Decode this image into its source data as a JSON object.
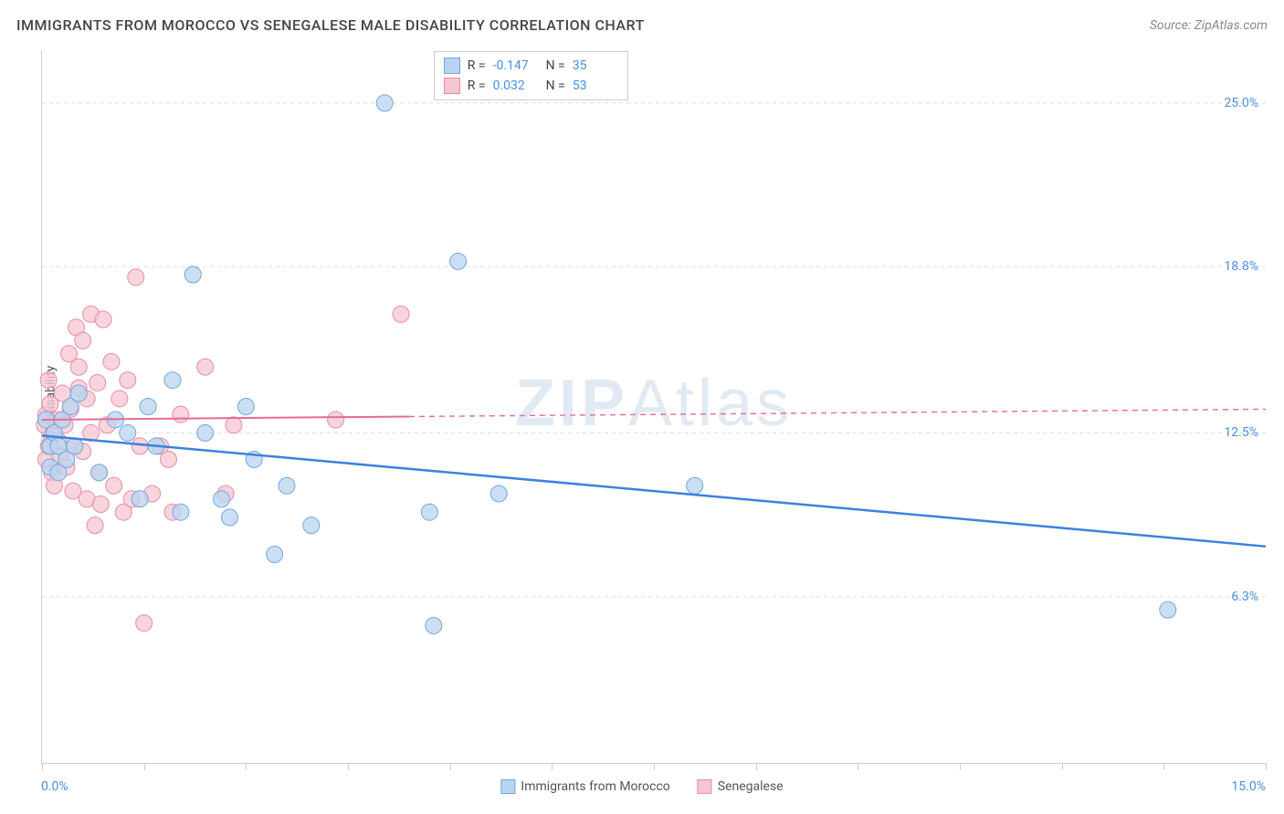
{
  "title": "IMMIGRANTS FROM MOROCCO VS SENEGALESE MALE DISABILITY CORRELATION CHART",
  "source": "Source: ZipAtlas.com",
  "watermark": {
    "part1": "ZIP",
    "part2": "Atlas"
  },
  "chart": {
    "type": "scatter",
    "ylabel": "Male Disability",
    "xlim": [
      0,
      15
    ],
    "ylim": [
      0,
      27
    ],
    "x_min_label": "0.0%",
    "x_max_label": "15.0%",
    "x_ticks": [
      0,
      1.25,
      2.5,
      3.75,
      5,
      6.25,
      7.5,
      8.75,
      10,
      11.25,
      12.5,
      13.75,
      15
    ],
    "y_gridlines": [
      {
        "value": 6.3,
        "label": "6.3%"
      },
      {
        "value": 12.5,
        "label": "12.5%"
      },
      {
        "value": 18.8,
        "label": "18.8%"
      },
      {
        "value": 25.0,
        "label": "25.0%"
      }
    ],
    "series": [
      {
        "name": "Immigrants from Morocco",
        "color_fill": "#b9d4f0",
        "color_stroke": "#6fa8dc",
        "trend": {
          "x1": 0,
          "y1": 12.4,
          "x2": 15,
          "y2": 8.2,
          "solid_until_x": 15,
          "color": "#3b82e0",
          "width": 2.5
        },
        "stats": {
          "R": "-0.147",
          "N": "35"
        },
        "points": [
          [
            0.05,
            13.0
          ],
          [
            0.1,
            12.0
          ],
          [
            0.1,
            11.2
          ],
          [
            0.15,
            12.5
          ],
          [
            0.2,
            12.0
          ],
          [
            0.2,
            11.0
          ],
          [
            0.25,
            13.0
          ],
          [
            0.3,
            11.5
          ],
          [
            0.35,
            13.5
          ],
          [
            0.4,
            12.0
          ],
          [
            0.45,
            14.0
          ],
          [
            0.7,
            11.0
          ],
          [
            0.9,
            13.0
          ],
          [
            1.05,
            12.5
          ],
          [
            1.2,
            10.0
          ],
          [
            1.3,
            13.5
          ],
          [
            1.4,
            12.0
          ],
          [
            1.6,
            14.5
          ],
          [
            1.7,
            9.5
          ],
          [
            1.85,
            18.5
          ],
          [
            2.0,
            12.5
          ],
          [
            2.2,
            10.0
          ],
          [
            2.3,
            9.3
          ],
          [
            2.5,
            13.5
          ],
          [
            2.6,
            11.5
          ],
          [
            2.85,
            7.9
          ],
          [
            3.0,
            10.5
          ],
          [
            3.3,
            9.0
          ],
          [
            4.2,
            25.0
          ],
          [
            4.75,
            9.5
          ],
          [
            4.8,
            5.2
          ],
          [
            5.1,
            19.0
          ],
          [
            5.6,
            10.2
          ],
          [
            8.0,
            10.5
          ],
          [
            13.8,
            5.8
          ]
        ]
      },
      {
        "name": "Senegalese",
        "color_fill": "#f6c7d2",
        "color_stroke": "#e98ba6",
        "trend": {
          "x1": 0,
          "y1": 13.0,
          "x2": 15,
          "y2": 13.4,
          "solid_until_x": 4.5,
          "color": "#e76a97",
          "width": 2
        },
        "stats": {
          "R": "0.032",
          "N": "53"
        },
        "points": [
          [
            0.03,
            12.8
          ],
          [
            0.05,
            13.2
          ],
          [
            0.05,
            11.5
          ],
          [
            0.08,
            12.0
          ],
          [
            0.08,
            14.5
          ],
          [
            0.1,
            13.6
          ],
          [
            0.12,
            11.0
          ],
          [
            0.12,
            12.4
          ],
          [
            0.15,
            10.5
          ],
          [
            0.18,
            13.0
          ],
          [
            0.2,
            12.2
          ],
          [
            0.22,
            11.6
          ],
          [
            0.25,
            14.0
          ],
          [
            0.28,
            12.8
          ],
          [
            0.3,
            11.2
          ],
          [
            0.33,
            15.5
          ],
          [
            0.35,
            13.4
          ],
          [
            0.38,
            10.3
          ],
          [
            0.4,
            12.0
          ],
          [
            0.42,
            16.5
          ],
          [
            0.45,
            15.0
          ],
          [
            0.45,
            14.2
          ],
          [
            0.5,
            11.8
          ],
          [
            0.5,
            16.0
          ],
          [
            0.55,
            10.0
          ],
          [
            0.55,
            13.8
          ],
          [
            0.6,
            17.0
          ],
          [
            0.6,
            12.5
          ],
          [
            0.65,
            9.0
          ],
          [
            0.68,
            14.4
          ],
          [
            0.7,
            11.0
          ],
          [
            0.72,
            9.8
          ],
          [
            0.75,
            16.8
          ],
          [
            0.8,
            12.8
          ],
          [
            0.85,
            15.2
          ],
          [
            0.88,
            10.5
          ],
          [
            0.95,
            13.8
          ],
          [
            1.0,
            9.5
          ],
          [
            1.05,
            14.5
          ],
          [
            1.1,
            10.0
          ],
          [
            1.15,
            18.4
          ],
          [
            1.2,
            12.0
          ],
          [
            1.25,
            5.3
          ],
          [
            1.35,
            10.2
          ],
          [
            1.45,
            12.0
          ],
          [
            1.55,
            11.5
          ],
          [
            1.6,
            9.5
          ],
          [
            1.7,
            13.2
          ],
          [
            2.0,
            15.0
          ],
          [
            2.25,
            10.2
          ],
          [
            2.35,
            12.8
          ],
          [
            3.6,
            13.0
          ],
          [
            4.4,
            17.0
          ]
        ]
      }
    ],
    "colors": {
      "axis": "#cccccc",
      "grid": "#dddddd",
      "text": "#555555",
      "value_text": "#4a90e2",
      "background": "#ffffff"
    },
    "marker_radius": 9
  }
}
